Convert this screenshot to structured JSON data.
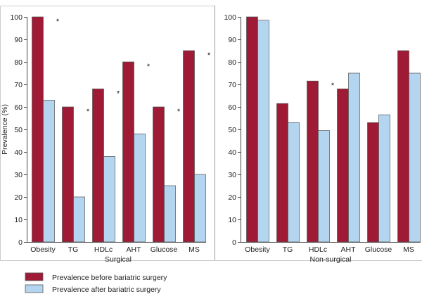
{
  "colors": {
    "before": "#9e1a35",
    "after": "#b4d5f0",
    "bar_outline": "#555555",
    "axis": "#444444",
    "frame": "#888888",
    "asterisk": "#111111"
  },
  "legend": {
    "placement": "bottom-left",
    "entries": [
      {
        "label": "Prevalence before bariatric surgery",
        "series": "before"
      },
      {
        "label": "Prevalence after bariatric surgery",
        "series": "after"
      }
    ]
  },
  "chart_data": [
    {
      "type": "bar",
      "title": "",
      "xlabel": "Surgical",
      "ylabel": "Prevalence (%)",
      "ylim": [
        0,
        100
      ],
      "yticks": [
        0,
        10,
        20,
        30,
        40,
        50,
        60,
        70,
        80,
        90,
        100
      ],
      "grid": false,
      "categories": [
        "Obesity",
        "TG",
        "HDLc",
        "AHT",
        "Glucose",
        "MS"
      ],
      "series": [
        {
          "name": "Prevalence before bariatric surgery",
          "key": "before",
          "values": [
            100,
            60,
            68,
            80,
            60,
            85
          ]
        },
        {
          "name": "Prevalence after bariatric surgery",
          "key": "after",
          "values": [
            63,
            20,
            38,
            48,
            25,
            30
          ]
        }
      ],
      "significance": [
        true,
        true,
        true,
        true,
        true,
        true
      ],
      "annotation_symbol": "*"
    },
    {
      "type": "bar",
      "title": "",
      "xlabel": "Non-surgical",
      "ylabel": "",
      "ylim": [
        0,
        100
      ],
      "yticks": [
        0,
        10,
        20,
        30,
        40,
        50,
        60,
        70,
        80,
        90,
        100
      ],
      "grid": false,
      "categories": [
        "Obesity",
        "TG",
        "HDLc",
        "AHT",
        "Glucose",
        "MS"
      ],
      "series": [
        {
          "name": "Prevalence before bariatric surgery",
          "key": "before",
          "values": [
            100,
            61.5,
            71.5,
            68,
            53,
            85
          ]
        },
        {
          "name": "Prevalence after bariatric surgery",
          "key": "after",
          "values": [
            98.5,
            53,
            49.5,
            75,
            56.5,
            75
          ]
        }
      ],
      "significance": [
        false,
        false,
        true,
        false,
        false,
        true
      ],
      "annotation_symbol": "*"
    }
  ]
}
